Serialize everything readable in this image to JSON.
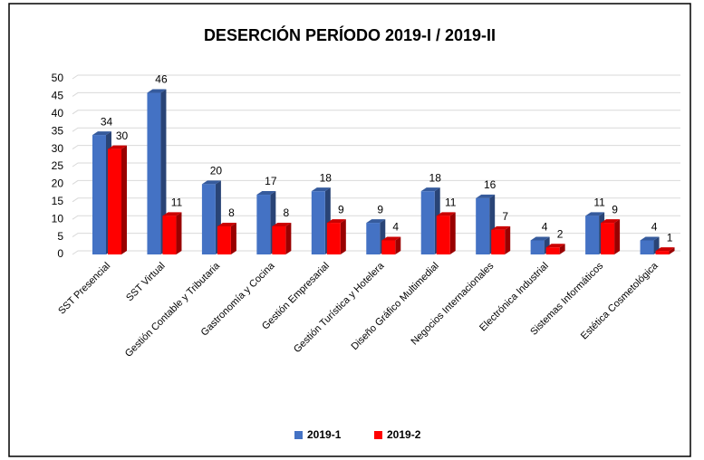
{
  "chart_data": {
    "type": "bar3d",
    "title": "DESERCIÓN PERÍODO 2019-I / 2019-II",
    "categories": [
      "SST Presencial",
      "SST Virtual",
      "Gestión Contable y Tributaria",
      "Gastronomía y Cocina",
      "Gestión Empresarial",
      "Gestión Turística y Hotelera",
      "Diseño Gráfico Multimedial",
      "Negocios Internacionales",
      "Electrónica Industrial",
      "Sistemas Informáticos",
      "Estética Cosmetológica"
    ],
    "series": [
      {
        "name": "2019-1",
        "color": "#4472c4",
        "values": [
          34,
          46,
          20,
          17,
          18,
          9,
          18,
          16,
          4,
          11,
          4
        ]
      },
      {
        "name": "2019-2",
        "color": "#ff0000",
        "values": [
          30,
          11,
          8,
          8,
          9,
          4,
          11,
          7,
          2,
          9,
          1
        ]
      }
    ],
    "ylim": [
      0,
      50
    ],
    "yticks": [
      0,
      5,
      10,
      15,
      20,
      25,
      30,
      35,
      40,
      45,
      50
    ],
    "grid": true,
    "legend": "bottom"
  }
}
